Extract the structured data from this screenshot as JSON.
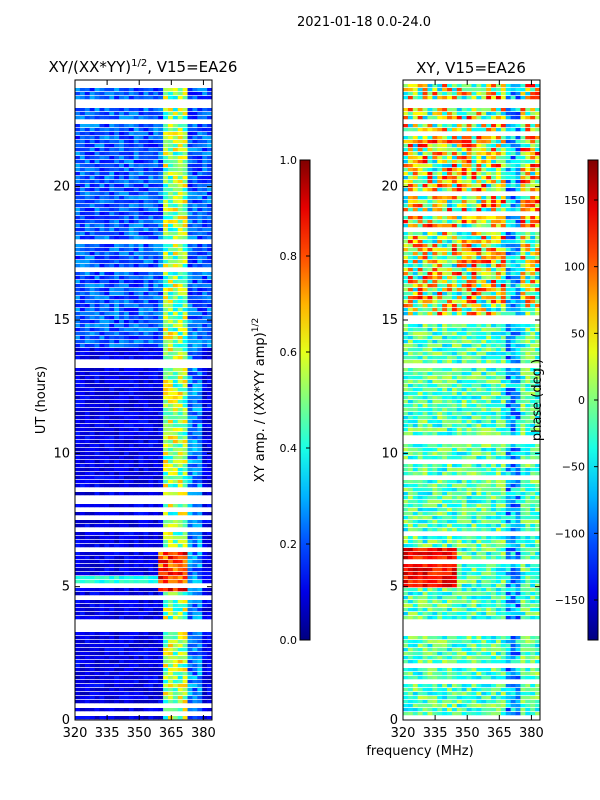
{
  "suptitle": "2021-01-18 0.0-24.0",
  "chart_data": [
    {
      "type": "heatmap",
      "title": "XY/(XX*YY)$^{1/2}$, V15=EA26",
      "title_text": "XY/(XX*YY)",
      "title_exp": "1/2",
      "title_suffix": ", V15=EA26",
      "xlabel": "",
      "ylabel": "UT (hours)",
      "xlim": [
        320,
        384
      ],
      "ylim": [
        0,
        24
      ],
      "xticks": [
        320,
        335,
        350,
        365,
        380
      ],
      "yticks": [
        0,
        5,
        10,
        15,
        20
      ],
      "colorbar": {
        "label": "XY amp. / (XX*YY amp)$^{1/2}$",
        "label_text": "XY amp. / (XX*YY amp)",
        "label_exp": "1/2",
        "range": [
          0.0,
          1.0
        ],
        "ticks": [
          "0.0",
          "0.2",
          "0.4",
          "0.6",
          "0.8",
          "1.0"
        ],
        "tick_values": [
          0.0,
          0.2,
          0.4,
          0.6,
          0.8,
          1.0
        ]
      }
    },
    {
      "type": "heatmap",
      "title": "XY, V15=EA26",
      "xlabel": "frequency (MHz)",
      "ylabel": "",
      "xlim": [
        320,
        384
      ],
      "ylim": [
        0,
        24
      ],
      "xticks": [
        320,
        335,
        350,
        365,
        380
      ],
      "yticks": [
        0,
        5,
        10,
        15,
        20
      ],
      "colorbar": {
        "label": "phase (deg.)",
        "range": [
          -180,
          180
        ],
        "ticks": [
          "−150",
          "−100",
          "−50",
          "0",
          "50",
          "100",
          "150"
        ],
        "tick_values": [
          -150,
          -100,
          -50,
          0,
          50,
          100,
          150
        ]
      }
    }
  ],
  "colors": {
    "background": "#ffffff",
    "gap": "#ffffff"
  }
}
